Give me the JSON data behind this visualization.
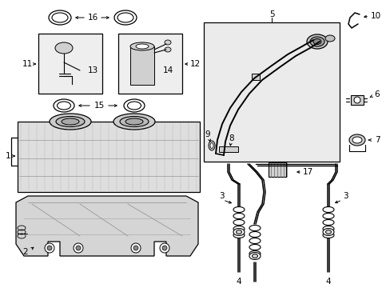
{
  "bg_color": "#ffffff",
  "line_color": "#000000",
  "light_gray": "#d0d0d0",
  "box_fill": "#eeeeee",
  "tank_fill": "#e0e0e0",
  "bracket_fill": "#d8d8d8",
  "filler_box_fill": "#e8e8e8"
}
